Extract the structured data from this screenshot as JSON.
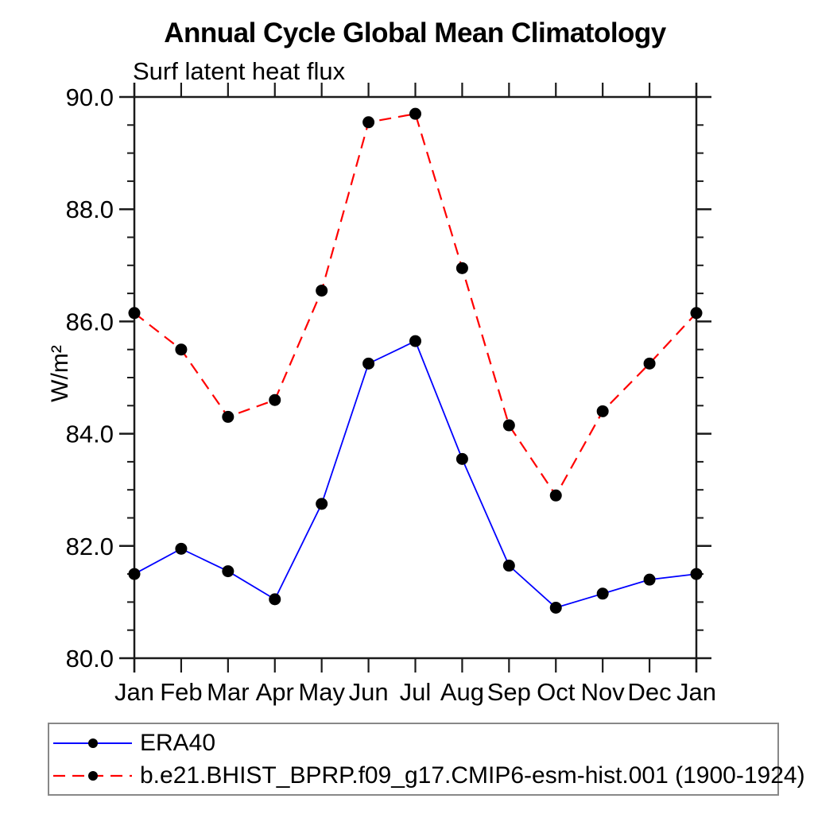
{
  "header": {
    "title": "Annual Cycle Global Mean Climatology",
    "subtitle": "Surf latent heat flux"
  },
  "chart_data": {
    "type": "line",
    "title": "Annual Cycle Global Mean Climatology",
    "subtitle": "Surf latent heat flux",
    "xlabel": "",
    "ylabel": "W/m²",
    "categories": [
      "Jan",
      "Feb",
      "Mar",
      "Apr",
      "May",
      "Jun",
      "Jul",
      "Aug",
      "Sep",
      "Oct",
      "Nov",
      "Dec",
      "Jan"
    ],
    "ylim": [
      80.0,
      90.0
    ],
    "ytick_major_step": 2.0,
    "ytick_minor_step": 0.5,
    "ytick_labels": [
      "90.0",
      "88.0",
      "86.0",
      "84.0",
      "82.0",
      "80.0"
    ],
    "grid": false,
    "legend_position": "bottom-left",
    "axis_color": "#1a1a1a",
    "marker_color": "#000000",
    "series": [
      {
        "name": "ERA40",
        "color": "#0000ff",
        "style": "solid",
        "marker": "circle",
        "values": [
          81.5,
          81.95,
          81.55,
          81.05,
          82.75,
          85.25,
          85.65,
          83.55,
          81.65,
          80.9,
          81.15,
          81.4,
          81.5
        ]
      },
      {
        "name": "b.e21.BHIST_BPRP.f09_g17.CMIP6-esm-hist.001 (1900-1924)",
        "color": "#ff0000",
        "style": "dashed",
        "marker": "circle",
        "values": [
          86.15,
          85.5,
          84.3,
          84.6,
          86.55,
          89.55,
          89.7,
          86.95,
          84.15,
          82.9,
          84.4,
          85.25,
          86.15
        ]
      }
    ]
  }
}
